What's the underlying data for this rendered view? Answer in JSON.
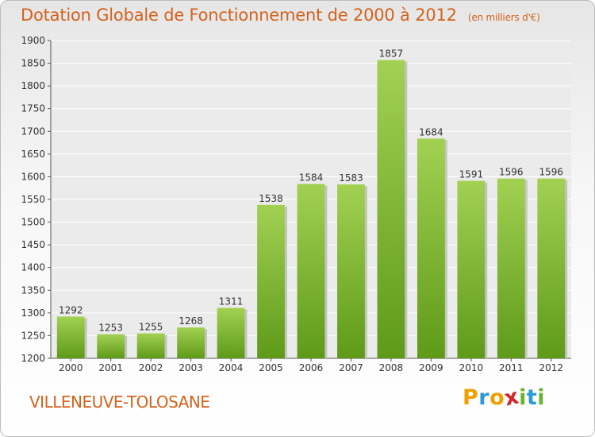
{
  "header": {
    "title": "Dotation Globale de Fonctionnement de 2000 à 2012",
    "unit": "(en milliers d'€)"
  },
  "footer": {
    "commune": "VILLENEUVE-TOLOSANE",
    "logo_text": "Proxiti"
  },
  "colors": {
    "title": "#d4621c",
    "bar_top": "#a2d152",
    "bar_bottom": "#5e9a18",
    "logo": [
      "#f0a000",
      "#2a9ad8",
      "#f0a000",
      "#d4262c",
      "#6ab42a",
      "#2a9ad8",
      "#6ab42a"
    ]
  },
  "chart_data": {
    "type": "bar",
    "title": "Dotation Globale de Fonctionnement de 2000 à 2012",
    "subtitle": "(en milliers d'€)",
    "categories": [
      "2000",
      "2001",
      "2002",
      "2003",
      "2004",
      "2005",
      "2006",
      "2007",
      "2008",
      "2009",
      "2010",
      "2011",
      "2012"
    ],
    "values": [
      1292,
      1253,
      1255,
      1268,
      1311,
      1538,
      1584,
      1583,
      1857,
      1684,
      1591,
      1596,
      1596
    ],
    "ylim": [
      1200,
      1900
    ],
    "yticks": [
      1200,
      1250,
      1300,
      1350,
      1400,
      1450,
      1500,
      1550,
      1600,
      1650,
      1700,
      1750,
      1800,
      1850,
      1900
    ],
    "grid": true,
    "xlabel": "",
    "ylabel": ""
  }
}
